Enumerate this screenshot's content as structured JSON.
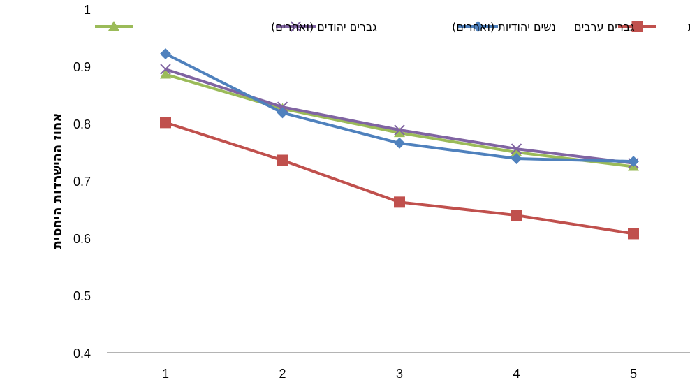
{
  "chart_data": {
    "type": "line",
    "title": "",
    "xlabel": "",
    "ylabel": "אחוז ההישרדות היחסית",
    "categories": [
      "1",
      "2",
      "3",
      "4",
      "5"
    ],
    "ylim": [
      0.4,
      1
    ],
    "yticks": [
      "0.4",
      "0.5",
      "0.6",
      "0.7",
      "0.8",
      "0.9",
      "1"
    ],
    "grid": false,
    "legend_position": "top",
    "series": [
      {
        "name": "גברים יהודים (ואחרים)",
        "values": [
          0.886,
          0.826,
          0.784,
          0.75,
          0.725
        ],
        "color": "#9BBB59",
        "marker": "triangle"
      },
      {
        "name": "נשים יהודיות (ואחרים)",
        "values": [
          0.895,
          0.829,
          0.789,
          0.756,
          0.731
        ],
        "color": "#8064A2",
        "marker": "x"
      },
      {
        "name": "גברים ערבים",
        "values": [
          0.922,
          0.819,
          0.766,
          0.739,
          0.734
        ],
        "color": "#4F81BD",
        "marker": "diamond"
      },
      {
        "name": "שים ערביות",
        "values": [
          0.802,
          0.736,
          0.663,
          0.64,
          0.608
        ],
        "color": "#C0504D",
        "marker": "square"
      }
    ]
  }
}
